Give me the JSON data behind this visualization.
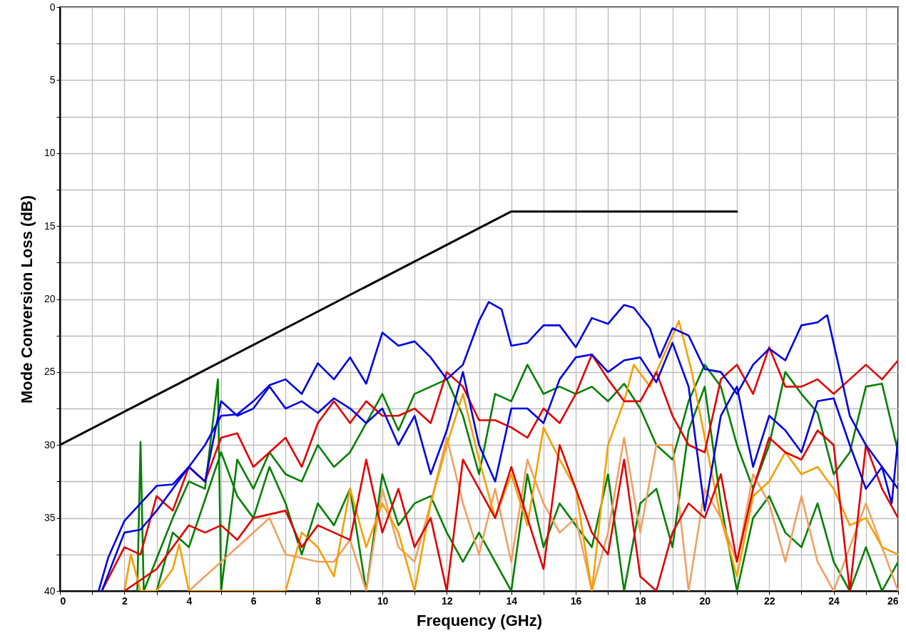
{
  "chart_data": {
    "type": "line",
    "xlabel": "Frequency (GHz)",
    "ylabel": "Mode Conversion Loss (dB)",
    "xlim": [
      0,
      26
    ],
    "ylim": [
      40,
      0
    ],
    "xticks": [
      0,
      {
        "value": 1,
        "label": null
      },
      2,
      {
        "value": 3,
        "label": null
      },
      4,
      {
        "value": 5,
        "label": null
      },
      6,
      {
        "value": 7,
        "label": null
      },
      8,
      {
        "value": 9,
        "label": null
      },
      10,
      {
        "value": 11,
        "label": null
      },
      12,
      {
        "value": 13,
        "label": null
      },
      14,
      {
        "value": 15,
        "label": null
      },
      16,
      {
        "value": 17,
        "label": null
      },
      18,
      {
        "value": 19,
        "label": null
      },
      20,
      {
        "value": 21,
        "label": null
      },
      22,
      {
        "value": 23,
        "label": null
      },
      24,
      {
        "value": 25,
        "label": null
      },
      26
    ],
    "yticks": [
      0,
      {
        "value": 2.5,
        "label": null
      },
      5,
      {
        "value": 7.5,
        "label": null
      },
      10,
      {
        "value": 12.5,
        "label": null
      },
      15,
      {
        "value": 17.5,
        "label": null
      },
      20,
      {
        "value": 22.5,
        "label": null
      },
      25,
      {
        "value": 27.5,
        "label": null
      },
      30,
      {
        "value": 32.5,
        "label": null
      },
      35,
      {
        "value": 37.5,
        "label": null
      },
      40
    ],
    "grid": true,
    "line_style": "solid",
    "series": [
      {
        "color": "#008000",
        "x": [
          2.4,
          2.5,
          2.6,
          3.5,
          4,
          4.5,
          4.9,
          5,
          5.5,
          6,
          6.5,
          7,
          7.5,
          8,
          8.5,
          9,
          9.5,
          10,
          10.5,
          11,
          11.5,
          12,
          12.5,
          13,
          13.5,
          14,
          14.5,
          15,
          15.5,
          16,
          16.5,
          17,
          17.5,
          18,
          18.5,
          19,
          19.5,
          20,
          20.5,
          21,
          21.5,
          22,
          22.5,
          23,
          23.5,
          24,
          24.5,
          25,
          25.5,
          26
        ],
        "values": [
          40,
          29.8,
          40,
          35,
          32.5,
          33,
          25.5,
          40,
          31,
          33,
          30.5,
          32,
          32.5,
          30,
          31.5,
          30.5,
          28.5,
          26.5,
          29,
          26.5,
          26,
          25.5,
          28,
          32,
          26.5,
          27,
          24.5,
          26.5,
          26,
          26.5,
          26,
          27,
          25.8,
          27.5,
          30,
          31,
          27,
          24.5,
          26,
          30,
          33,
          30,
          25,
          26.5,
          27.8,
          32,
          30.5,
          26,
          25.8,
          30.5
        ]
      },
      {
        "color": "#008000",
        "x": [
          3,
          3.5,
          4,
          5,
          5.5,
          6,
          6.5,
          7,
          7.5,
          8,
          8.5,
          9,
          9.5,
          10,
          10.5,
          11,
          11.5,
          12,
          12.5,
          13,
          13.5,
          14,
          14.5,
          15,
          15.5,
          16,
          16.5,
          17,
          17.5,
          18,
          18.5,
          19,
          19.5,
          20,
          20.5,
          21,
          21.5,
          22,
          22.5,
          23,
          23.5,
          24,
          24.5,
          25,
          25.5,
          26
        ],
        "values": [
          40,
          36,
          37,
          30.5,
          33.5,
          35,
          31.5,
          34,
          37.5,
          34,
          35.5,
          33,
          40,
          32,
          35.5,
          34,
          33.5,
          36,
          38,
          36,
          38,
          40,
          32,
          37,
          34,
          35.5,
          37,
          32,
          40,
          34,
          33,
          37,
          29,
          26,
          34,
          40,
          35,
          33.5,
          36,
          37,
          34,
          38,
          40,
          37,
          40,
          38
        ]
      },
      {
        "color": "#f0a060",
        "x": [
          4,
          6.5,
          7,
          8,
          8.5,
          9,
          9.5,
          10,
          10.5,
          11,
          11.5,
          12,
          12.5,
          13,
          13.5,
          14,
          14.5,
          15,
          15.5,
          16,
          16.5,
          17,
          17.5,
          18,
          18.5,
          19,
          19.5,
          20,
          20.5,
          21,
          21.5,
          22,
          22.5,
          23,
          23.5,
          24,
          24.5,
          25,
          25.5,
          26
        ],
        "values": [
          40,
          35,
          37.5,
          38,
          38,
          36.5,
          40,
          33,
          37,
          38,
          34,
          29.5,
          34,
          37.5,
          33,
          38,
          31,
          34,
          36,
          35,
          40,
          36,
          29.5,
          36,
          30,
          30,
          40,
          33,
          35,
          38,
          32,
          34,
          38,
          33.5,
          38,
          40,
          37,
          34,
          37,
          40
        ]
      },
      {
        "color": "#f5a000",
        "x": [
          2,
          2.2,
          2.5,
          3,
          3.5,
          3.7,
          4,
          7,
          7.5,
          8,
          8.5,
          9,
          9.5,
          10,
          10.5,
          11,
          11.5,
          12,
          12.5,
          13,
          13.5,
          14,
          14.5,
          15,
          15.5,
          16,
          16.5,
          17,
          17.5,
          17.8,
          18.3,
          18.8,
          19.2,
          19.6,
          20,
          20.5,
          21,
          21.5,
          22,
          22.5,
          23,
          23.5,
          24,
          24.5,
          25,
          25.5,
          26
        ],
        "values": [
          40,
          37.5,
          40,
          40,
          38.5,
          36.8,
          40,
          40,
          36,
          37,
          39,
          33,
          37,
          34,
          36,
          40,
          34,
          30,
          26.5,
          31,
          35,
          32,
          35.5,
          28.8,
          31,
          33,
          40,
          30,
          27,
          24.5,
          26,
          23.5,
          21.5,
          25,
          29.5,
          35,
          39,
          33.5,
          32.5,
          30.5,
          32,
          31.5,
          33,
          35.5,
          35,
          37,
          37.5
        ]
      },
      {
        "color": "#e00000",
        "x": [
          2,
          3,
          4,
          4.5,
          5,
          5.5,
          6,
          7,
          7.5,
          8,
          8.5,
          9,
          9.5,
          10,
          10.5,
          11,
          11.5,
          12,
          12.5,
          13,
          13.5,
          14,
          14.5,
          15,
          15.5,
          16,
          16.5,
          17,
          17.5,
          18,
          18.5,
          19,
          19.5,
          20,
          20.5,
          21,
          21.5,
          22,
          22.5,
          23,
          23.5,
          24,
          24.5,
          25,
          25.5,
          26
        ],
        "values": [
          40,
          38.5,
          35.5,
          36,
          35.5,
          36.5,
          35,
          34.5,
          37,
          35.5,
          36,
          36.5,
          31,
          36,
          33,
          37,
          35,
          40,
          31,
          33,
          35,
          31.5,
          35,
          38.5,
          30,
          33,
          36,
          37.5,
          31,
          39,
          40,
          36,
          34,
          35,
          32,
          38,
          33,
          29.5,
          30.5,
          31,
          29,
          30,
          40,
          30,
          33,
          35
        ]
      },
      {
        "color": "#e00000",
        "x": [
          1.3,
          2,
          2.5,
          3,
          3.5,
          4,
          4.5,
          5,
          5.5,
          6,
          6.5,
          7,
          7.5,
          8,
          8.5,
          9,
          9.5,
          10,
          10.5,
          11,
          11.5,
          12,
          12.5,
          13,
          13.5,
          14,
          14.5,
          15,
          15.5,
          16,
          16.5,
          17,
          17.5,
          18,
          18.5,
          19,
          19.5,
          20,
          20.5,
          21,
          21.5,
          22,
          22.5,
          23,
          23.5,
          24,
          24.5,
          25,
          25.5,
          26
        ],
        "values": [
          40,
          37,
          37.5,
          33.5,
          34.5,
          31.5,
          32.5,
          29.5,
          29.2,
          31.5,
          30.5,
          29.5,
          31.5,
          28.5,
          27,
          28.5,
          27,
          28,
          28,
          27.5,
          28.5,
          25,
          26,
          28.3,
          28.3,
          28.8,
          29.5,
          27.5,
          28.5,
          26.5,
          23.8,
          25.5,
          27,
          27,
          25,
          28,
          30,
          30.5,
          25.5,
          24.5,
          26.5,
          23.3,
          26,
          26,
          25.5,
          26.5,
          25.5,
          24.5,
          25.5,
          24.2
        ]
      },
      {
        "color": "#0000e0",
        "x": [
          1.3,
          2,
          2.5,
          3,
          4,
          4.5,
          5,
          5.5,
          6,
          6.5,
          7,
          7.5,
          8,
          8.5,
          9,
          9.5,
          10,
          10.5,
          11,
          11.5,
          12,
          12.5,
          13,
          13.5,
          14,
          14.5,
          15,
          15.5,
          16,
          16.5,
          17,
          17.5,
          18,
          18.5,
          19,
          19.5,
          20,
          20.5,
          21,
          21.5,
          22,
          22.5,
          23,
          23.5,
          24,
          24.5,
          25,
          25.5,
          26
        ],
        "values": [
          40,
          36,
          35.8,
          34.5,
          31.5,
          32.5,
          27,
          28,
          27.5,
          26,
          27.5,
          27,
          27.8,
          26.8,
          27.5,
          28.5,
          27.5,
          30,
          28,
          32,
          29,
          25,
          30,
          32.5,
          27.5,
          27.5,
          28.5,
          25.5,
          24,
          23.8,
          25,
          24.2,
          24,
          25.7,
          23,
          26,
          34.5,
          28,
          26,
          31.5,
          28,
          29,
          30.5,
          27,
          26.8,
          30,
          33,
          31.5,
          33
        ]
      },
      {
        "color": "#0000e0",
        "x": [
          1.2,
          1.5,
          2,
          2.5,
          3,
          3.5,
          4,
          4.5,
          5,
          5.5,
          6,
          6.5,
          7,
          7.5,
          8,
          8.5,
          9,
          9.5,
          10,
          10.5,
          11,
          11.5,
          12,
          12.5,
          13,
          13.3,
          13.7,
          14,
          14.5,
          15,
          15.5,
          16,
          16.5,
          17,
          17.5,
          17.8,
          18.3,
          18.6,
          19,
          19.5,
          20,
          20.5,
          21,
          21.5,
          22,
          22.5,
          23,
          23.5,
          23.8,
          24.2,
          24.5,
          25,
          25.5,
          25.8,
          26
        ],
        "values": [
          40,
          37.7,
          35.2,
          34,
          32.8,
          32.7,
          31.5,
          30,
          28,
          27.9,
          27,
          25.9,
          25.5,
          26.5,
          24.4,
          25.5,
          24,
          25.8,
          22.3,
          23.2,
          22.9,
          24,
          25.5,
          24.5,
          21.5,
          20.2,
          20.7,
          23.2,
          23,
          21.8,
          21.8,
          23.3,
          21.3,
          21.7,
          20.4,
          20.6,
          22,
          24,
          22,
          22.5,
          24.8,
          25,
          26.5,
          24.5,
          23.4,
          24.2,
          21.8,
          21.6,
          21.1,
          25,
          28,
          30,
          31.5,
          34,
          29.5
        ]
      },
      {
        "color": "#000000",
        "x": [
          0,
          14,
          21
        ],
        "values": [
          30,
          14,
          14
        ]
      }
    ]
  }
}
